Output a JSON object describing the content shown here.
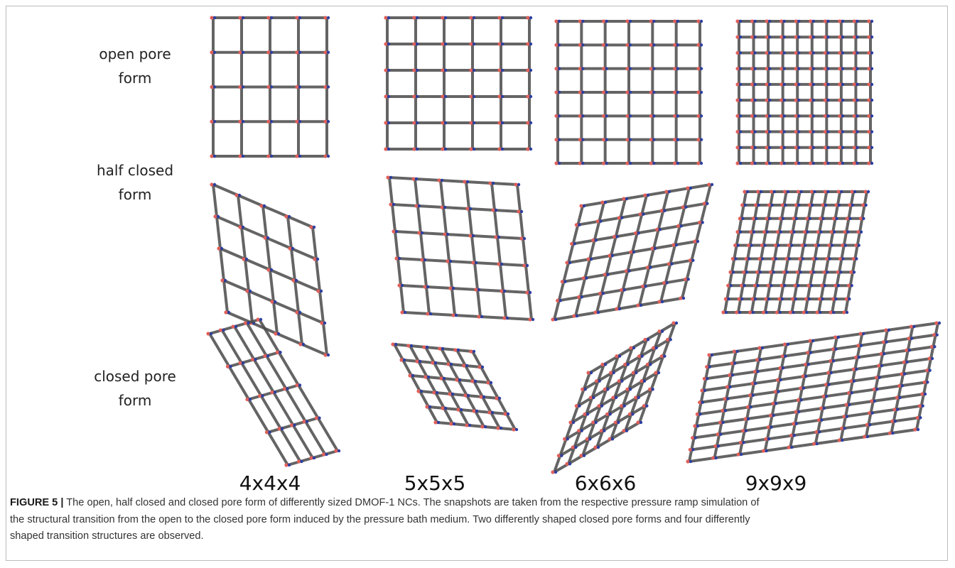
{
  "figure": {
    "row_labels": [
      [
        "open pore",
        "form"
      ],
      [
        "half closed",
        "form"
      ],
      [
        "closed pore",
        "form"
      ]
    ],
    "column_labels": [
      "4x4x4",
      "5x5x5",
      "6x6x6",
      "9x9x9"
    ],
    "caption": {
      "label": "FIGURE 5 |",
      "lines": [
        "The open, half closed and closed pore form of differently sized DMOF-1 NCs. The snapshots are taken from the respective pressure ramp simulation of",
        "the structural transition from the open to the closed pore form induced by the pressure bath medium. Two differently shaped closed pore forms and four differently",
        "shaped transition structures are observed."
      ]
    }
  }
}
